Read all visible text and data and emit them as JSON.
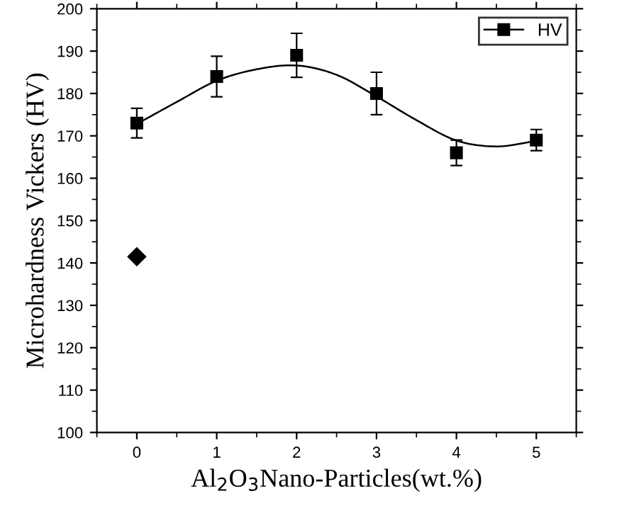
{
  "chart_data": {
    "type": "scatter",
    "xlabel": "Al$_{2}$O$_{3}$Nano-Particles(wt.%)",
    "ylabel": "Microhardness Vickers (HV)",
    "xlim": [
      -0.5,
      5.5
    ],
    "xticks": [
      0,
      1,
      2,
      3,
      4,
      5
    ],
    "ylim": [
      100,
      200
    ],
    "yticks": [
      100,
      110,
      120,
      130,
      140,
      150,
      160,
      170,
      180,
      190,
      200
    ],
    "grid": false,
    "legend": "top right",
    "series": [
      {
        "name": "HV",
        "marker": "square",
        "color": "#000000",
        "x": [
          0,
          1,
          2,
          3,
          4,
          5
        ],
        "values": [
          173,
          184,
          189,
          180,
          166,
          169
        ],
        "errors": [
          3.5,
          4.8,
          5.2,
          5,
          3,
          2.5
        ]
      },
      {
        "type": "line",
        "marker": "none",
        "line_style": "solid",
        "color": "#000000",
        "x": [
          0,
          0.5,
          1,
          1.5,
          2,
          2.5,
          3,
          3.5,
          4,
          4.5,
          5
        ],
        "values": [
          172.8,
          178,
          183,
          185.7,
          186.6,
          184.4,
          179.3,
          173.7,
          168.9,
          167.5,
          168.8
        ]
      },
      {
        "marker": "diamond",
        "color": "#000000",
        "x": [
          0
        ],
        "values": [
          141.5
        ]
      }
    ]
  }
}
